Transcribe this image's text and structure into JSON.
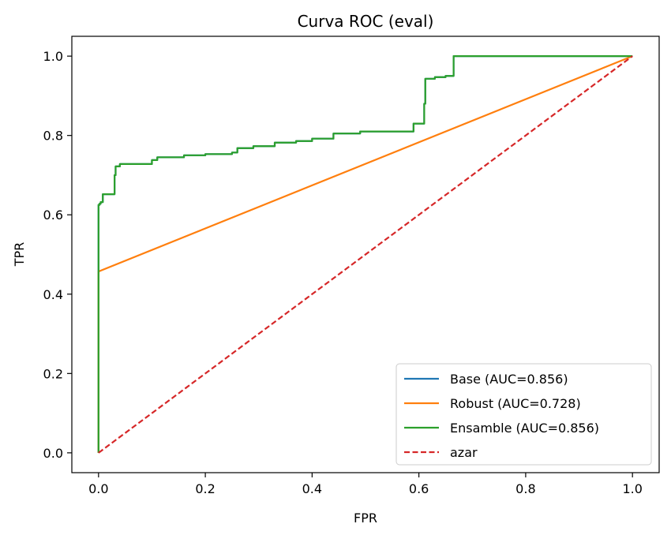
{
  "chart_data": {
    "type": "line",
    "title": "Curva ROC (eval)",
    "xlabel": "FPR",
    "ylabel": "TPR",
    "xlim": [
      -0.05,
      1.05
    ],
    "ylim": [
      -0.05,
      1.05
    ],
    "x_ticks": [
      0.0,
      0.2,
      0.4,
      0.6,
      0.8,
      1.0
    ],
    "y_ticks": [
      0.0,
      0.2,
      0.4,
      0.6,
      0.8,
      1.0
    ],
    "x_tick_labels": [
      "0.0",
      "0.2",
      "0.4",
      "0.6",
      "0.8",
      "1.0"
    ],
    "y_tick_labels": [
      "0.0",
      "0.2",
      "0.4",
      "0.6",
      "0.8",
      "1.0"
    ],
    "grid": false,
    "legend_position": "lower-right",
    "series": [
      {
        "name": "Base (AUC=0.856)",
        "color": "#1f77b4",
        "dash": "solid",
        "x": [
          0.0,
          0.0,
          0.002,
          0.002,
          0.004,
          0.004,
          0.008,
          0.008,
          0.03,
          0.03,
          0.032,
          0.032,
          0.04,
          0.04,
          0.1,
          0.1,
          0.11,
          0.11,
          0.16,
          0.16,
          0.2,
          0.2,
          0.25,
          0.25,
          0.26,
          0.26,
          0.29,
          0.29,
          0.33,
          0.33,
          0.37,
          0.37,
          0.4,
          0.4,
          0.44,
          0.44,
          0.49,
          0.49,
          0.59,
          0.59,
          0.61,
          0.61,
          0.612,
          0.612,
          0.63,
          0.63,
          0.65,
          0.65,
          0.665,
          0.665,
          1.0
        ],
        "y": [
          0.0,
          0.625,
          0.625,
          0.628,
          0.628,
          0.632,
          0.632,
          0.652,
          0.652,
          0.7,
          0.7,
          0.722,
          0.722,
          0.728,
          0.728,
          0.738,
          0.738,
          0.745,
          0.745,
          0.75,
          0.75,
          0.753,
          0.753,
          0.757,
          0.757,
          0.768,
          0.768,
          0.773,
          0.773,
          0.782,
          0.782,
          0.786,
          0.786,
          0.792,
          0.792,
          0.805,
          0.805,
          0.81,
          0.81,
          0.83,
          0.83,
          0.88,
          0.88,
          0.943,
          0.943,
          0.947,
          0.947,
          0.95,
          0.95,
          1.0,
          1.0
        ]
      },
      {
        "name": "Robust (AUC=0.728)",
        "color": "#ff7f0e",
        "dash": "solid",
        "x": [
          0.0,
          0.0,
          1.0
        ],
        "y": [
          0.0,
          0.457,
          1.0
        ]
      },
      {
        "name": "Ensamble (AUC=0.856)",
        "color": "#2ca02c",
        "dash": "solid",
        "x": [
          0.0,
          0.0,
          0.002,
          0.002,
          0.004,
          0.004,
          0.008,
          0.008,
          0.03,
          0.03,
          0.032,
          0.032,
          0.04,
          0.04,
          0.1,
          0.1,
          0.11,
          0.11,
          0.16,
          0.16,
          0.2,
          0.2,
          0.25,
          0.25,
          0.26,
          0.26,
          0.29,
          0.29,
          0.33,
          0.33,
          0.37,
          0.37,
          0.4,
          0.4,
          0.44,
          0.44,
          0.49,
          0.49,
          0.59,
          0.59,
          0.61,
          0.61,
          0.612,
          0.612,
          0.63,
          0.63,
          0.65,
          0.65,
          0.665,
          0.665,
          1.0
        ],
        "y": [
          0.0,
          0.625,
          0.625,
          0.628,
          0.628,
          0.632,
          0.632,
          0.652,
          0.652,
          0.7,
          0.7,
          0.722,
          0.722,
          0.728,
          0.728,
          0.738,
          0.738,
          0.745,
          0.745,
          0.75,
          0.75,
          0.753,
          0.753,
          0.757,
          0.757,
          0.768,
          0.768,
          0.773,
          0.773,
          0.782,
          0.782,
          0.786,
          0.786,
          0.792,
          0.792,
          0.805,
          0.805,
          0.81,
          0.81,
          0.83,
          0.83,
          0.88,
          0.88,
          0.943,
          0.943,
          0.947,
          0.947,
          0.95,
          0.95,
          1.0,
          1.0
        ]
      },
      {
        "name": "azar",
        "color": "#d62728",
        "dash": "dashed",
        "x": [
          0.0,
          1.0
        ],
        "y": [
          0.0,
          1.0
        ]
      }
    ]
  }
}
